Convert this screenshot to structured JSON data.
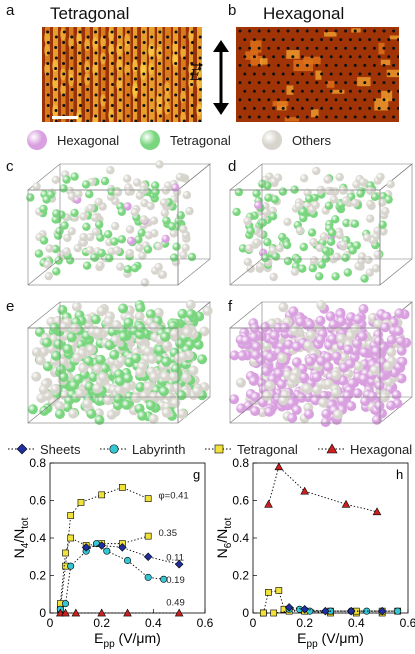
{
  "panels": {
    "a": {
      "letter": "a",
      "title": "Tetragonal"
    },
    "b": {
      "letter": "b",
      "title": "Hexagonal"
    },
    "c": {
      "letter": "c"
    },
    "d": {
      "letter": "d"
    },
    "e": {
      "letter": "e"
    },
    "f": {
      "letter": "f"
    }
  },
  "field_label": "E",
  "particle_legend": [
    {
      "label": "Hexagonal",
      "color": "#d9a0df"
    },
    {
      "label": "Tetragonal",
      "color": "#79d67f"
    },
    {
      "label": "Others",
      "color": "#d6d4cc"
    }
  ],
  "series_legend": [
    {
      "label": "Sheets",
      "marker": "diamond",
      "color": "#1f2fa0"
    },
    {
      "label": "Labyrinth",
      "marker": "circle",
      "color": "#35c6d3"
    },
    {
      "label": "Tetragonal",
      "marker": "square",
      "color": "#f0e23a"
    },
    {
      "label": "Hexagonal",
      "marker": "triangle",
      "color": "#cc2020"
    }
  ],
  "chart_data": [
    {
      "type": "line",
      "panel": "g",
      "ylabel": "N4/Ntot",
      "xlabel": "Epp (V/μm)",
      "xlim": [
        0,
        0.6
      ],
      "ylim": [
        0,
        0.8
      ],
      "xticks": [
        0,
        0.2,
        0.4,
        0.6
      ],
      "yticks": [
        0,
        0.2,
        0.4,
        0.6,
        0.8
      ],
      "xtick_labels": [
        "0",
        "0.2",
        "0.4",
        "0.6"
      ],
      "ytick_labels": [
        "0",
        "0.2",
        "0.4",
        "0.6",
        "0.8"
      ],
      "annotations": [
        {
          "text": "φ=0.41",
          "x": 0.42,
          "y": 0.61
        },
        {
          "text": "0.35",
          "x": 0.42,
          "y": 0.41
        },
        {
          "text": "0.11",
          "x": 0.45,
          "y": 0.28
        },
        {
          "text": "0.19",
          "x": 0.45,
          "y": 0.16
        },
        {
          "text": "0.49",
          "x": 0.45,
          "y": 0.04
        }
      ],
      "series": [
        {
          "name": "Tetragonal",
          "marker": "square",
          "points": [
            [
              0.04,
              0.02
            ],
            [
              0.06,
              0.25
            ],
            [
              0.08,
              0.52
            ],
            [
              0.12,
              0.59
            ],
            [
              0.2,
              0.63
            ],
            [
              0.28,
              0.67
            ],
            [
              0.38,
              0.61
            ]
          ]
        },
        {
          "name": "Tetragonal",
          "marker": "square",
          "points": [
            [
              0.04,
              0.05
            ],
            [
              0.06,
              0.32
            ],
            [
              0.08,
              0.4
            ],
            [
              0.14,
              0.36
            ],
            [
              0.2,
              0.37
            ],
            [
              0.28,
              0.37
            ],
            [
              0.38,
              0.41
            ]
          ]
        },
        {
          "name": "Labyrinth",
          "marker": "circle",
          "points": [
            [
              0.04,
              0.02
            ],
            [
              0.06,
              0.05
            ],
            [
              0.08,
              0.25
            ],
            [
              0.14,
              0.33
            ],
            [
              0.18,
              0.37
            ],
            [
              0.22,
              0.33
            ],
            [
              0.3,
              0.28
            ],
            [
              0.38,
              0.19
            ],
            [
              0.44,
              0.18
            ]
          ]
        },
        {
          "name": "Sheets",
          "marker": "diamond",
          "points": [
            [
              0.14,
              0.35
            ],
            [
              0.2,
              0.36
            ],
            [
              0.28,
              0.35
            ],
            [
              0.38,
              0.3
            ],
            [
              0.5,
              0.26
            ]
          ]
        },
        {
          "name": "Hexagonal",
          "marker": "triangle",
          "points": [
            [
              0.04,
              0.0
            ],
            [
              0.06,
              0.0
            ],
            [
              0.1,
              0.0
            ],
            [
              0.2,
              0.0
            ],
            [
              0.3,
              0.0
            ],
            [
              0.5,
              0.0
            ]
          ]
        }
      ]
    },
    {
      "type": "line",
      "panel": "h",
      "ylabel": "N6/Ntot",
      "xlabel": "Epp (V/μm)",
      "xlim": [
        0,
        0.6
      ],
      "ylim": [
        0,
        0.8
      ],
      "xticks": [
        0,
        0.2,
        0.4,
        0.6
      ],
      "yticks": [
        0,
        0.2,
        0.4,
        0.6,
        0.8
      ],
      "xtick_labels": [
        "0",
        "0.2",
        "0.4",
        "0.6"
      ],
      "ytick_labels": [
        "0",
        "0.2",
        "0.4",
        "0.6",
        "0.8"
      ],
      "series": [
        {
          "name": "Hexagonal",
          "marker": "triangle",
          "points": [
            [
              0.06,
              0.58
            ],
            [
              0.1,
              0.78
            ],
            [
              0.2,
              0.65
            ],
            [
              0.36,
              0.58
            ],
            [
              0.48,
              0.54
            ]
          ]
        },
        {
          "name": "Tetragonal",
          "marker": "square",
          "points": [
            [
              0.04,
              0.0
            ],
            [
              0.06,
              0.11
            ],
            [
              0.1,
              0.12
            ],
            [
              0.12,
              0.02
            ],
            [
              0.2,
              0.01
            ],
            [
              0.3,
              0.0
            ],
            [
              0.4,
              0.0
            ],
            [
              0.5,
              0.0
            ]
          ]
        },
        {
          "name": "Tetragonal",
          "marker": "square",
          "points": [
            [
              0.04,
              0.0
            ],
            [
              0.08,
              0.0
            ],
            [
              0.14,
              0.01
            ],
            [
              0.2,
              0.01
            ],
            [
              0.3,
              0.01
            ],
            [
              0.4,
              0.01
            ],
            [
              0.5,
              0.01
            ],
            [
              0.56,
              0.01
            ]
          ]
        },
        {
          "name": "Labyrinth",
          "marker": "circle",
          "points": [
            [
              0.14,
              0.02
            ],
            [
              0.18,
              0.02
            ],
            [
              0.22,
              0.01
            ],
            [
              0.3,
              0.01
            ],
            [
              0.38,
              0.01
            ],
            [
              0.44,
              0.01
            ],
            [
              0.56,
              0.01
            ]
          ]
        },
        {
          "name": "Sheets",
          "marker": "diamond",
          "points": [
            [
              0.14,
              0.03
            ],
            [
              0.2,
              0.02
            ],
            [
              0.28,
              0.01
            ],
            [
              0.38,
              0.01
            ],
            [
              0.5,
              0.01
            ]
          ]
        }
      ]
    }
  ]
}
